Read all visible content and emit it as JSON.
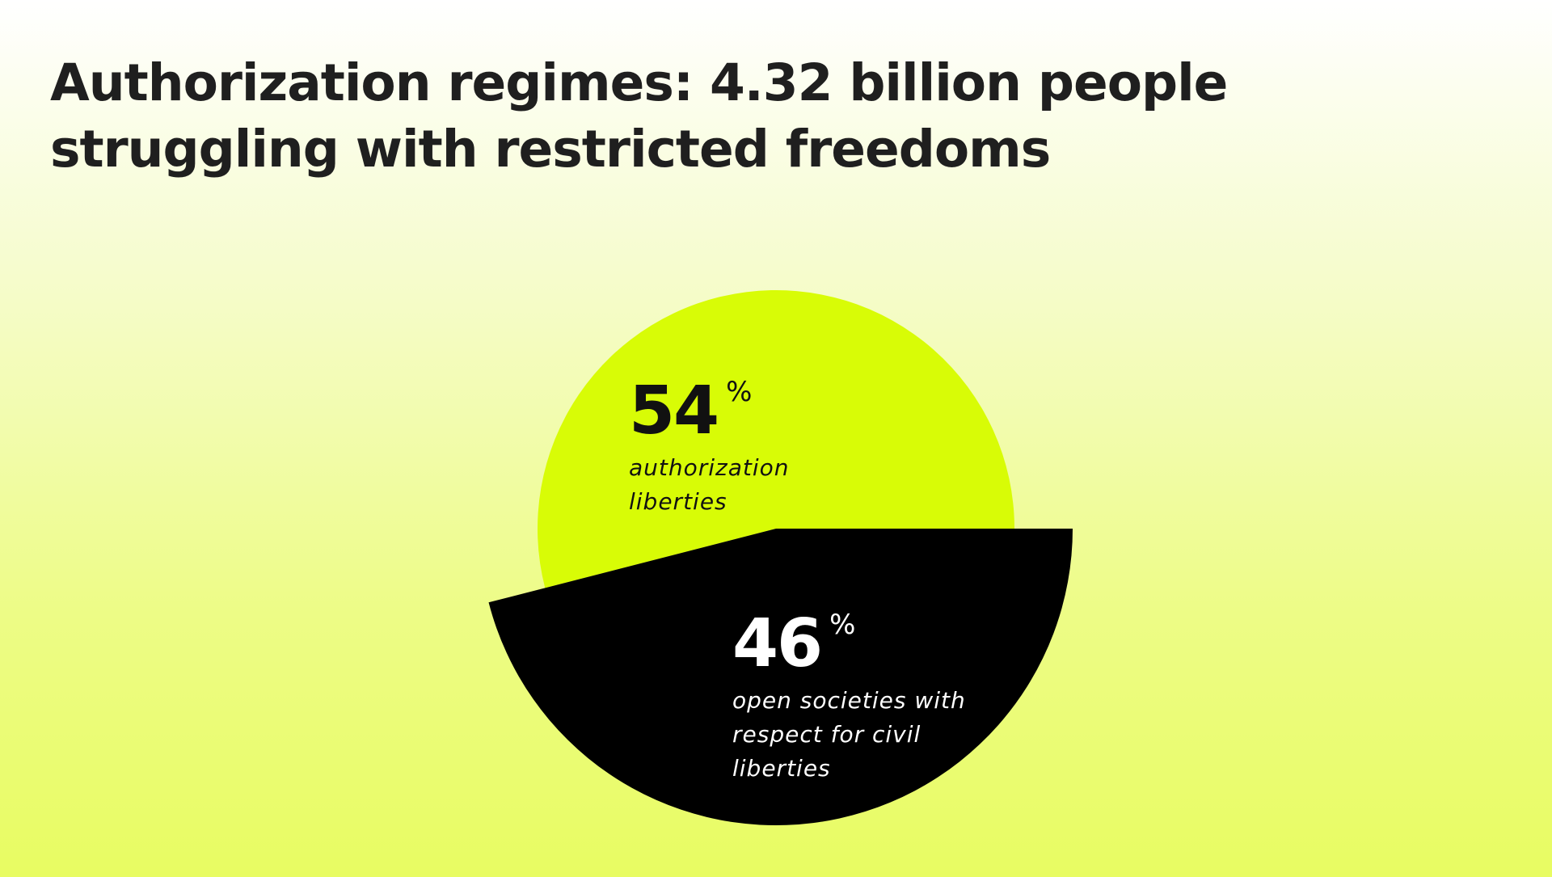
{
  "chart_data": {
    "type": "pie",
    "title": "Authorization regimes: 4.32 billion people struggling with restricted freedoms",
    "categories": [
      "authorization liberties",
      "open societies with respect for civil liberties"
    ],
    "values": [
      54,
      46
    ],
    "unit": "%",
    "colors": [
      "#d8fc06",
      "#000000"
    ]
  }
}
